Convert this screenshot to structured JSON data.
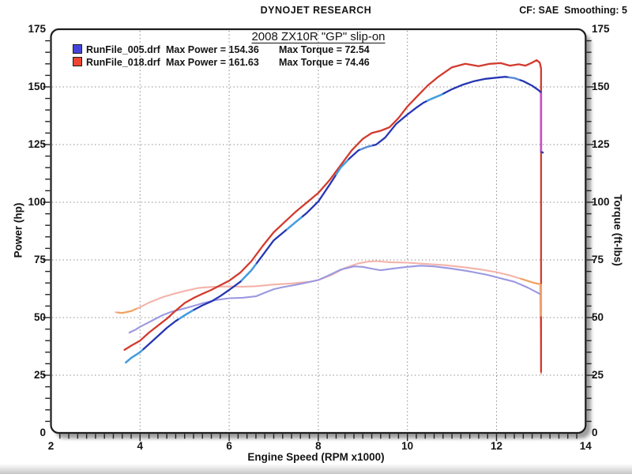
{
  "header": {
    "brand": "DYNOJET RESEARCH",
    "correction": "CF: SAE  Smoothing: 5"
  },
  "chart_data": {
    "type": "line",
    "title": "2008 ZX10R \"GP\" slip-on",
    "xlabel": "Engine Speed (RPM x1000)",
    "ylabel_left": "Power (hp)",
    "ylabel_right": "Torque (ft-lbs)",
    "xlim": [
      2,
      14
    ],
    "ylim": [
      0,
      175
    ],
    "x_ticks": [
      2,
      4,
      6,
      8,
      10,
      12,
      14
    ],
    "y_ticks": [
      0,
      25,
      50,
      75,
      100,
      125,
      150,
      175
    ],
    "x_gridlines": [
      4,
      6,
      8,
      10,
      12
    ],
    "y_gridlines": [
      25,
      50,
      75,
      100,
      125,
      150
    ],
    "grid": "dotted",
    "legend_position": "top-left",
    "legend": [
      {
        "file": "RunFile_005.drf",
        "power_label": "Max Power = 154.36",
        "torque_label": "Max Torque = 72.54",
        "max_power": 154.36,
        "max_torque": 72.54,
        "color": "#4444dd"
      },
      {
        "file": "RunFile_018.drf",
        "power_label": "Max Power = 161.63",
        "torque_label": "Max Torque = 74.46",
        "max_power": 161.63,
        "max_torque": 74.46,
        "color": "#ee4433"
      }
    ],
    "series": [
      {
        "name": "torque_018",
        "run": "RunFile_018.drf",
        "unit": "ft-lbs",
        "color": "#f3b3a9",
        "width": 2.1,
        "points": [
          [
            3.45,
            52.3
          ],
          [
            3.6,
            52
          ],
          [
            3.8,
            52.8
          ],
          [
            4.0,
            54.5
          ],
          [
            4.2,
            56.5
          ],
          [
            4.5,
            58.8
          ],
          [
            4.8,
            60.5
          ],
          [
            5.0,
            61.5
          ],
          [
            5.3,
            62.8
          ],
          [
            5.6,
            63.3
          ],
          [
            6.0,
            63.5
          ],
          [
            6.3,
            63.4
          ],
          [
            6.6,
            63.6
          ],
          [
            7.0,
            64.3
          ],
          [
            7.4,
            64.8
          ],
          [
            7.8,
            65.5
          ],
          [
            8.0,
            66.2
          ],
          [
            8.3,
            68.5
          ],
          [
            8.6,
            71.5
          ],
          [
            8.9,
            73.5
          ],
          [
            9.1,
            74.2
          ],
          [
            9.3,
            74.5
          ],
          [
            9.6,
            74
          ],
          [
            10.0,
            73.8
          ],
          [
            10.4,
            73.3
          ],
          [
            10.8,
            72.8
          ],
          [
            11.2,
            72
          ],
          [
            11.6,
            71
          ],
          [
            12.0,
            69.7
          ],
          [
            12.3,
            68.3
          ],
          [
            12.6,
            66.5
          ],
          [
            12.85,
            65
          ],
          [
            12.98,
            64.5
          ],
          [
            13.0,
            25.5
          ]
        ]
      },
      {
        "name": "torque_005",
        "run": "RunFile_005.drf",
        "unit": "ft-lbs",
        "color": "#9b98e2",
        "width": 2.1,
        "points": [
          [
            3.76,
            43.5
          ],
          [
            3.9,
            44.8
          ],
          [
            4.0,
            46
          ],
          [
            4.1,
            47
          ],
          [
            4.3,
            49
          ],
          [
            4.5,
            51
          ],
          [
            4.7,
            52.5
          ],
          [
            4.9,
            53.5
          ],
          [
            5.1,
            54.5
          ],
          [
            5.4,
            56.2
          ],
          [
            5.7,
            57.6
          ],
          [
            6.0,
            58.4
          ],
          [
            6.3,
            58.6
          ],
          [
            6.6,
            59.2
          ],
          [
            6.8,
            60.8
          ],
          [
            7.0,
            62.3
          ],
          [
            7.2,
            63.2
          ],
          [
            7.5,
            64.2
          ],
          [
            7.8,
            65.4
          ],
          [
            8.0,
            66.3
          ],
          [
            8.2,
            68
          ],
          [
            8.5,
            70.8
          ],
          [
            8.8,
            72.2
          ],
          [
            9.0,
            72
          ],
          [
            9.2,
            71.2
          ],
          [
            9.4,
            70.5
          ],
          [
            9.7,
            71.3
          ],
          [
            10.0,
            72
          ],
          [
            10.3,
            72.5
          ],
          [
            10.6,
            72.2
          ],
          [
            11.0,
            71.2
          ],
          [
            11.4,
            70
          ],
          [
            11.8,
            68.5
          ],
          [
            12.1,
            67
          ],
          [
            12.4,
            65.5
          ],
          [
            12.7,
            63
          ],
          [
            12.9,
            61
          ],
          [
            13.0,
            60
          ],
          [
            13.0,
            49.5
          ]
        ]
      },
      {
        "name": "power_018",
        "run": "RunFile_018.drf",
        "unit": "hp",
        "color": "#d23b2e",
        "width": 2.3,
        "points": [
          [
            3.65,
            36
          ],
          [
            3.8,
            37.8
          ],
          [
            4.0,
            40
          ],
          [
            4.2,
            43.5
          ],
          [
            4.4,
            46.5
          ],
          [
            4.6,
            49.5
          ],
          [
            4.8,
            53
          ],
          [
            5.0,
            56.3
          ],
          [
            5.2,
            58.5
          ],
          [
            5.4,
            60.3
          ],
          [
            5.6,
            62
          ],
          [
            5.8,
            64
          ],
          [
            6.0,
            66
          ],
          [
            6.25,
            69.5
          ],
          [
            6.5,
            74.5
          ],
          [
            6.75,
            81
          ],
          [
            7.0,
            87
          ],
          [
            7.25,
            91.5
          ],
          [
            7.5,
            96
          ],
          [
            7.75,
            100
          ],
          [
            8.0,
            104
          ],
          [
            8.25,
            109.5
          ],
          [
            8.5,
            116
          ],
          [
            8.75,
            122.5
          ],
          [
            9.0,
            127.5
          ],
          [
            9.2,
            130
          ],
          [
            9.4,
            131
          ],
          [
            9.6,
            132.5
          ],
          [
            9.8,
            136.5
          ],
          [
            10.0,
            141.5
          ],
          [
            10.2,
            145.5
          ],
          [
            10.45,
            150.5
          ],
          [
            10.7,
            154.5
          ],
          [
            11.0,
            158.5
          ],
          [
            11.3,
            160
          ],
          [
            11.6,
            159
          ],
          [
            11.85,
            160
          ],
          [
            12.1,
            160.3
          ],
          [
            12.3,
            159.2
          ],
          [
            12.5,
            159.8
          ],
          [
            12.65,
            159.2
          ],
          [
            12.8,
            160.5
          ],
          [
            12.9,
            161.6
          ],
          [
            12.97,
            160.5
          ],
          [
            13.0,
            158
          ],
          [
            13.0,
            26.5
          ]
        ]
      },
      {
        "name": "power_005",
        "run": "RunFile_005.drf",
        "unit": "hp",
        "color": "#2636b2",
        "width": 2.3,
        "points": [
          [
            3.68,
            30.5
          ],
          [
            3.8,
            32.5
          ],
          [
            4.0,
            35
          ],
          [
            4.2,
            38.5
          ],
          [
            4.4,
            42
          ],
          [
            4.6,
            45.5
          ],
          [
            4.8,
            48.5
          ],
          [
            5.0,
            51
          ],
          [
            5.2,
            53.3
          ],
          [
            5.4,
            55.3
          ],
          [
            5.6,
            57
          ],
          [
            5.8,
            59.3
          ],
          [
            6.0,
            62
          ],
          [
            6.25,
            65.5
          ],
          [
            6.5,
            70.5
          ],
          [
            6.75,
            77
          ],
          [
            7.0,
            83.5
          ],
          [
            7.25,
            87.5
          ],
          [
            7.5,
            91.5
          ],
          [
            7.75,
            95.5
          ],
          [
            8.0,
            100.3
          ],
          [
            8.25,
            107.5
          ],
          [
            8.5,
            115
          ],
          [
            8.7,
            119
          ],
          [
            8.9,
            122.5
          ],
          [
            9.1,
            124
          ],
          [
            9.3,
            125
          ],
          [
            9.5,
            128
          ],
          [
            9.75,
            134
          ],
          [
            10.0,
            138
          ],
          [
            10.2,
            141
          ],
          [
            10.35,
            143
          ],
          [
            10.5,
            144.5
          ],
          [
            10.75,
            146.5
          ],
          [
            11.0,
            149
          ],
          [
            11.25,
            151
          ],
          [
            11.5,
            152.5
          ],
          [
            11.75,
            153.5
          ],
          [
            12.0,
            154
          ],
          [
            12.2,
            154.4
          ],
          [
            12.4,
            153.8
          ],
          [
            12.6,
            152.5
          ],
          [
            12.8,
            150.5
          ],
          [
            12.95,
            148.5
          ],
          [
            13.0,
            147.5
          ],
          [
            13.0,
            122
          ],
          [
            13.04,
            121.5
          ]
        ]
      }
    ],
    "overlays": [
      {
        "series": "power_005",
        "color": "#41a0e0",
        "from": 3.68,
        "to": 4.05
      },
      {
        "series": "power_005",
        "color": "#41a0e0",
        "from": 4.88,
        "to": 5.18
      },
      {
        "series": "power_005",
        "color": "#41a0e0",
        "from": 6.28,
        "to": 6.6
      },
      {
        "series": "power_005",
        "color": "#41a0e0",
        "from": 7.3,
        "to": 7.62
      },
      {
        "series": "power_005",
        "color": "#41a0e0",
        "from": 8.4,
        "to": 8.66
      },
      {
        "series": "power_005",
        "color": "#5b8fd8",
        "from": 8.95,
        "to": 9.2
      },
      {
        "series": "power_005",
        "color": "#41a0e0",
        "from": 10.45,
        "to": 10.78
      },
      {
        "series": "power_005",
        "color": "#5b8fd8",
        "from": 12.28,
        "to": 12.5
      },
      {
        "series": "torque_018",
        "color": "#efa25e",
        "from": 3.5,
        "to": 3.92
      },
      {
        "series": "torque_018",
        "color": "#efa25e",
        "from": 12.55,
        "to": 12.98
      }
    ],
    "drop_highlights": [
      {
        "rpm": 13.0,
        "v1": 147.5,
        "v2": 122,
        "color": "#cb4ec4",
        "width": 2.4
      },
      {
        "rpm": 13.0,
        "v1": 64.5,
        "v2": 50.5,
        "color": "#efa25e",
        "width": 2.2
      }
    ]
  }
}
